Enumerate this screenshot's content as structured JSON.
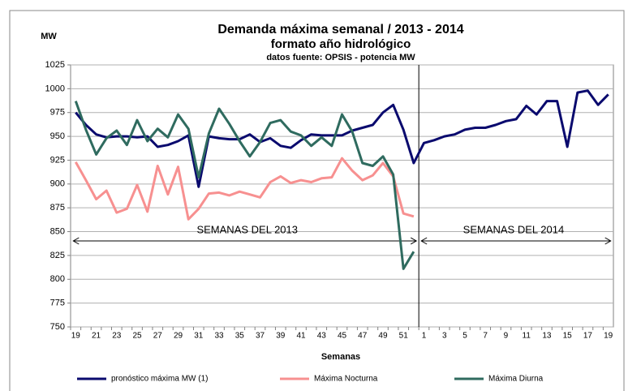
{
  "chart_data": {
    "type": "line",
    "title": "Demanda máxima semanal / 2013 - 2014",
    "subtitle": "formato año hidrológico",
    "source": "datos fuente: OPSIS - potencia MW",
    "y_label": "MW",
    "x_label": "Semanas",
    "annotations": [
      "SEMANAS DEL 2013",
      "SEMANAS DEL 2014"
    ],
    "categories": [
      "19",
      null,
      "21",
      null,
      "23",
      null,
      "25",
      null,
      "27",
      null,
      "29",
      null,
      "31",
      null,
      "33",
      null,
      "35",
      null,
      "37",
      null,
      "39",
      null,
      "41",
      null,
      "43",
      null,
      "45",
      null,
      "47",
      null,
      "49",
      null,
      "51",
      null,
      "1",
      null,
      "3",
      null,
      "5",
      null,
      "7",
      null,
      "9",
      null,
      "11",
      null,
      "13",
      null,
      "15",
      null,
      "17",
      null,
      "19"
    ],
    "series": [
      {
        "name": "pronóstico máxima MW (1)",
        "color": "#0a0a6e",
        "values": [
          975,
          962,
          952,
          949,
          950,
          950,
          949,
          950,
          939,
          941,
          945,
          951,
          897,
          950,
          948,
          947,
          947,
          952,
          944,
          948,
          940,
          938,
          946,
          952,
          951,
          951,
          951,
          956,
          959,
          962,
          975,
          983,
          957,
          922,
          943,
          946,
          950,
          952,
          957,
          959,
          959,
          962,
          966,
          968,
          982,
          973,
          987,
          987,
          939,
          996,
          998,
          983,
          994
        ]
      },
      {
        "name": "Máxima Nocturna",
        "color": "#f79090",
        "values": [
          923,
          904,
          884,
          893,
          870,
          874,
          899,
          871,
          919,
          889,
          918,
          863,
          874,
          890,
          891,
          888,
          892,
          889,
          886,
          902,
          908,
          901,
          904,
          902,
          906,
          907,
          927,
          914,
          904,
          909,
          922,
          908,
          869,
          866,
          null,
          null,
          null,
          null,
          null,
          null,
          null,
          null,
          null,
          null,
          null,
          null,
          null,
          null,
          null,
          null,
          null,
          null,
          null
        ]
      },
      {
        "name": "Máxima Diurna",
        "color": "#2f6b5f",
        "values": [
          987,
          957,
          931,
          948,
          956,
          941,
          967,
          945,
          958,
          949,
          973,
          958,
          907,
          953,
          979,
          963,
          945,
          929,
          944,
          964,
          967,
          955,
          951,
          940,
          949,
          940,
          973,
          955,
          922,
          919,
          929,
          910,
          811,
          829,
          null,
          null,
          null,
          null,
          null,
          null,
          null,
          null,
          null,
          null,
          null,
          null,
          null,
          null,
          null,
          null,
          null,
          null,
          null
        ]
      }
    ],
    "ylim": [
      750,
      1025
    ],
    "yticks": [
      750,
      775,
      800,
      825,
      850,
      875,
      900,
      925,
      950,
      975,
      1000,
      1025
    ],
    "grid": true,
    "legend": "bottom"
  }
}
